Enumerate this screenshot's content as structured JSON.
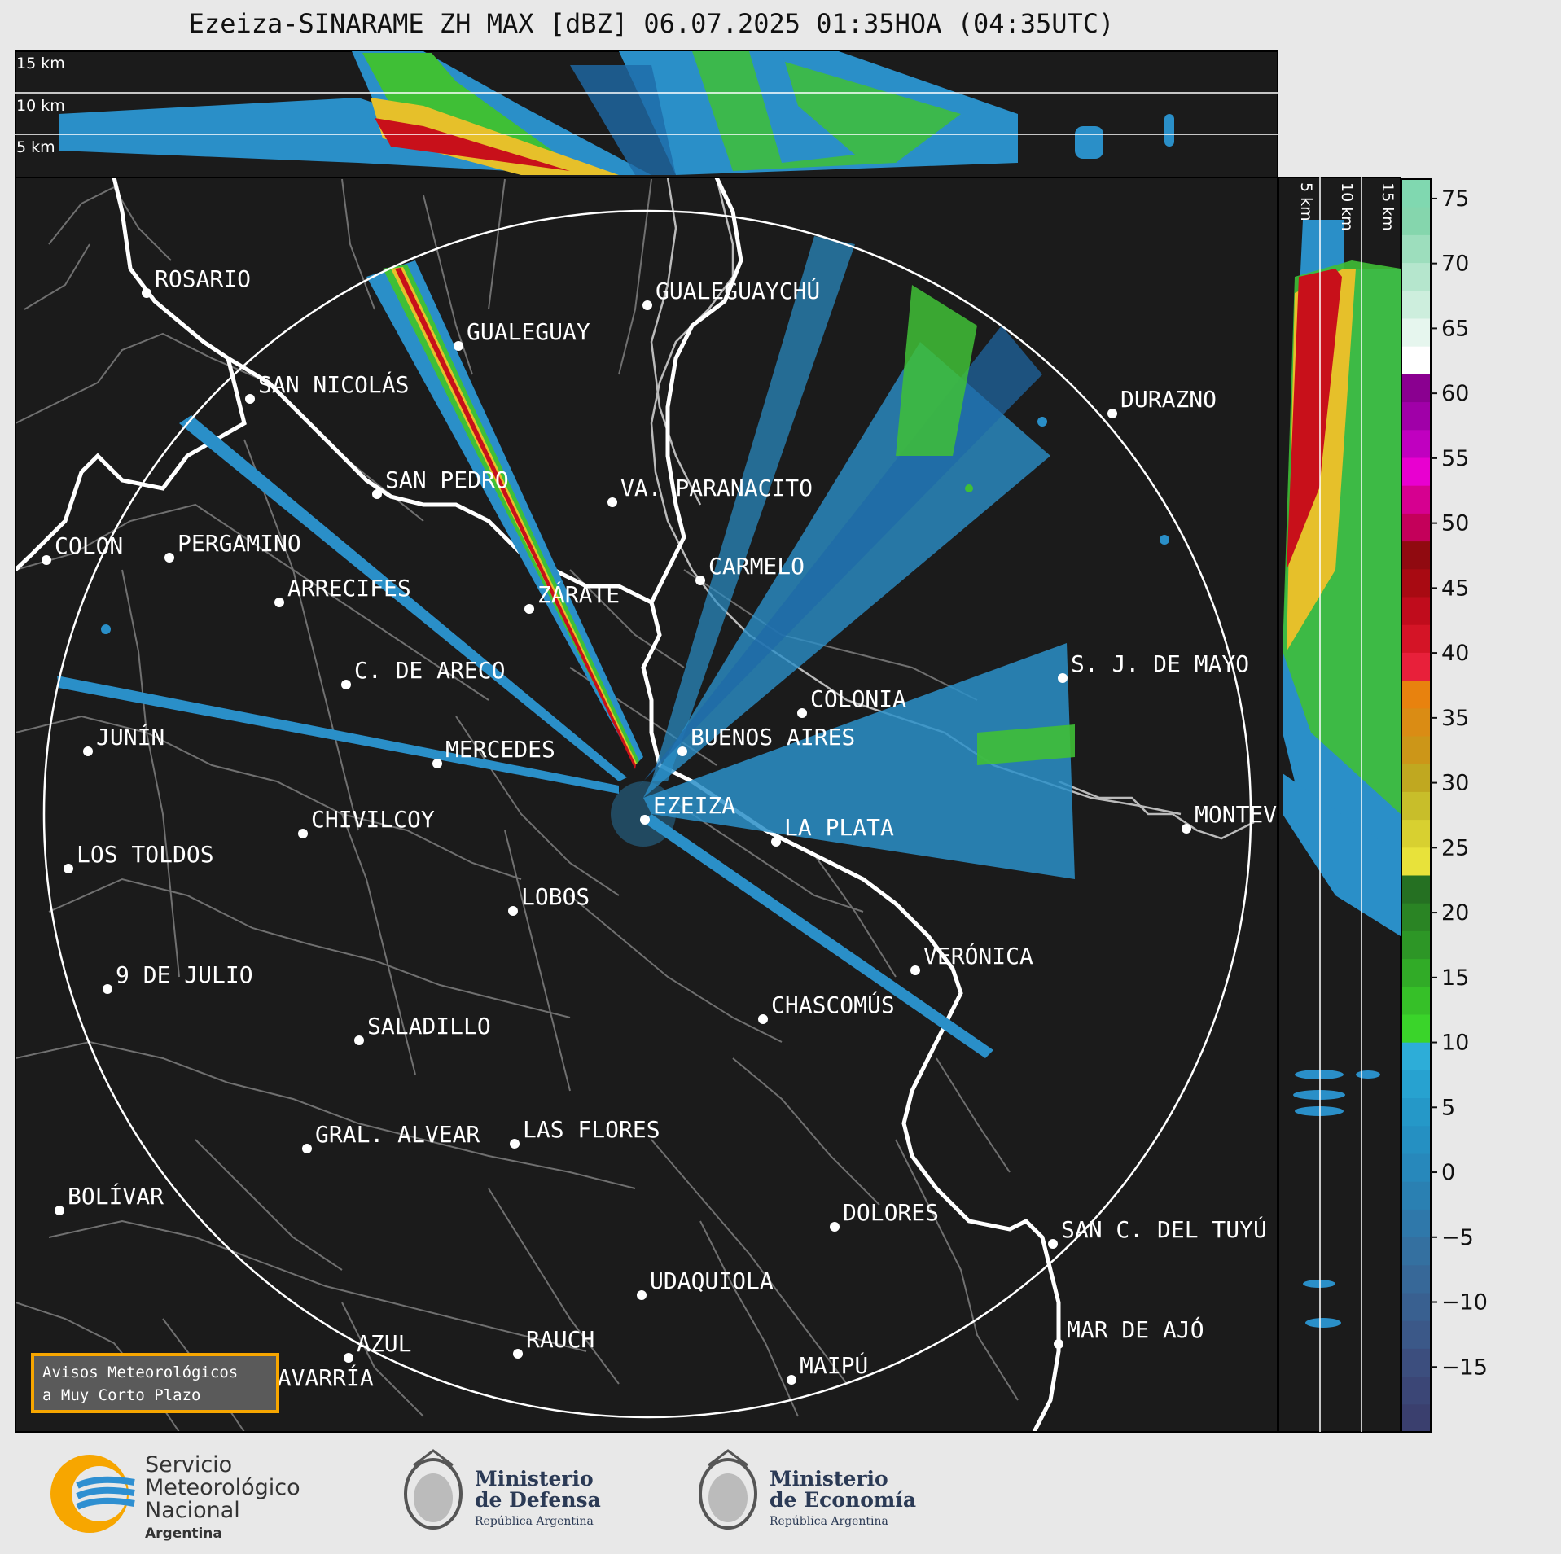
{
  "title": "Ezeiza-SINARAME ZH MAX [dBZ] 06.07.2025 01:35HOA (04:35UTC)",
  "top_panel_labels": [
    "15 km",
    "10 km",
    "5 km"
  ],
  "side_panel_labels": [
    "5 km",
    "10 km",
    "15 km"
  ],
  "colorbar": {
    "unit": "dBZ",
    "ticks": [
      "75",
      "70",
      "65",
      "60",
      "55",
      "50",
      "45",
      "40",
      "35",
      "30",
      "25",
      "20",
      "15",
      "10",
      "5",
      "0",
      "−5",
      "−10",
      "−15"
    ],
    "min": -20,
    "max": 76.5
  },
  "cities": [
    {
      "name": "ROSARIO"
    },
    {
      "name": "GUALEGUAYCHÚ"
    },
    {
      "name": "GUALEGUAY"
    },
    {
      "name": "SAN NICOLÁS"
    },
    {
      "name": "DURAZNO"
    },
    {
      "name": "SAN PEDRO"
    },
    {
      "name": "VA. PARANACITO"
    },
    {
      "name": "COLON"
    },
    {
      "name": "PERGAMINO"
    },
    {
      "name": "CARMELO"
    },
    {
      "name": "ARRECIFES"
    },
    {
      "name": "ZÁRATE"
    },
    {
      "name": "S. J. DE MAYO"
    },
    {
      "name": "C. DE ARECO"
    },
    {
      "name": "COLONIA"
    },
    {
      "name": "JUNÍN"
    },
    {
      "name": "BUENOS AIRES"
    },
    {
      "name": "MERCEDES"
    },
    {
      "name": "EZEIZA"
    },
    {
      "name": "MONTEV"
    },
    {
      "name": "CHIVILCOY"
    },
    {
      "name": "LA PLATA"
    },
    {
      "name": "LOS TOLDOS"
    },
    {
      "name": "LOBOS"
    },
    {
      "name": "VERÓNICA"
    },
    {
      "name": "9 DE JULIO"
    },
    {
      "name": "CHASCOMÚS"
    },
    {
      "name": "SALADILLO"
    },
    {
      "name": "GRAL. ALVEAR"
    },
    {
      "name": "LAS FLORES"
    },
    {
      "name": "BOLÍVAR"
    },
    {
      "name": "DOLORES"
    },
    {
      "name": "SAN C. DEL TUYÚ"
    },
    {
      "name": "UDAQUIOLA"
    },
    {
      "name": "MAR DE AJÓ"
    },
    {
      "name": "AZUL"
    },
    {
      "name": "RAUCH"
    },
    {
      "name": "MAIPÚ"
    },
    {
      "name": "OLAVARRÍA"
    }
  ],
  "avisos": {
    "line1": "Avisos Meteorológicos",
    "line2": "a Muy Corto Plazo"
  },
  "logos": {
    "smn": {
      "line1": "Servicio",
      "line2": "Meteorológico",
      "line3": "Nacional",
      "line4": "Argentina"
    },
    "defensa": {
      "line1": "Ministerio",
      "line2": "de Defensa",
      "line3": "República Argentina"
    },
    "economia": {
      "line1": "Ministerio",
      "line2": "de Economía",
      "line3": "República Argentina"
    }
  }
}
